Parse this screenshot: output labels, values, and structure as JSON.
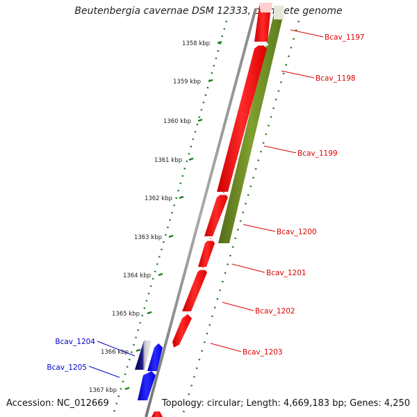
{
  "title": "Beutenbergia cavernae DSM 12333, complete genome",
  "accession": "Accession: NC_012669",
  "topology": "Topology: circular; Length: 4,669,183 bp; Genes: 4,250",
  "ticks": [
    "1358 kbp",
    "1359 kbp",
    "1360 kbp",
    "1361 kbp",
    "1362 kbp",
    "1363 kbp",
    "1364 kbp",
    "1365 kbp",
    "1366 kbp",
    "1367 kbp"
  ],
  "genes_forward": [
    {
      "label": "Bcav_1197",
      "color": "#dd0000"
    },
    {
      "label": "Bcav_1198",
      "color": "#dd0000"
    },
    {
      "label": "Bcav_1199",
      "color": "#dd0000"
    },
    {
      "label": "Bcav_1200",
      "color": "#dd0000"
    },
    {
      "label": "Bcav_1201",
      "color": "#dd0000"
    },
    {
      "label": "Bcav_1202",
      "color": "#dd0000"
    },
    {
      "label": "Bcav_1203",
      "color": "#dd0000"
    }
  ],
  "genes_reverse": [
    {
      "label": "Bcav_1204",
      "color": "#0000cc"
    },
    {
      "label": "Bcav_1205",
      "color": "#0000cc"
    }
  ],
  "colors": {
    "forward_gene": "#ff0000",
    "reverse_gene": "#0000ff",
    "other_feature": "#6b8e23",
    "backbone": "#999999",
    "tick": "#1a7a1a"
  }
}
